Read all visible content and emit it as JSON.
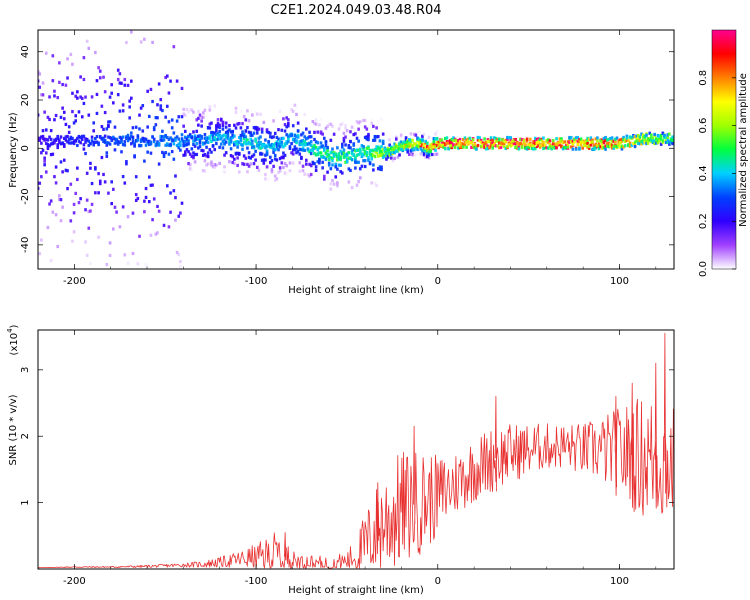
{
  "title": "C2E1.2024.049.03.48.R04",
  "chart_data": [
    {
      "type": "heatmap",
      "xlabel": "Height of straight line (km)",
      "ylabel": "Frequency (Hz)",
      "xlim": [
        -220,
        130
      ],
      "ylim": [
        -50,
        49
      ],
      "xticks": [
        -200,
        -100,
        0,
        100
      ],
      "yticks": [
        -40,
        -20,
        0,
        20,
        40
      ],
      "colorbar": {
        "label": "Normalized spectral amplitude",
        "range": [
          0,
          1
        ],
        "ticks": [
          "0.0",
          "0.2",
          "0.4",
          "0.6",
          "0.8"
        ],
        "tick_values": [
          0.0,
          0.2,
          0.4,
          0.6,
          0.8
        ],
        "colormap": [
          "#ffffff",
          "#a040ff",
          "#3000ff",
          "#0040ff",
          "#00d0ff",
          "#00ff40",
          "#a0ff00",
          "#ffff00",
          "#ff8000",
          "#ff0000",
          "#ff0090"
        ]
      },
      "ridge": {
        "x": [
          -220,
          -180,
          -140,
          -120,
          -100,
          -90,
          -80,
          -70,
          -60,
          -50,
          -40,
          -30,
          -20,
          -10,
          -5,
          0,
          20,
          50,
          80,
          100,
          115,
          130
        ],
        "center_hz": [
          3,
          3,
          3,
          4,
          2,
          0,
          5,
          0,
          -3,
          -4,
          -1,
          -2,
          1,
          2,
          0,
          2,
          2,
          2,
          2,
          2,
          4,
          4
        ],
        "amplitude": [
          0.2,
          0.3,
          0.35,
          0.4,
          0.45,
          0.4,
          0.4,
          0.45,
          0.5,
          0.5,
          0.5,
          0.6,
          0.7,
          0.8,
          0.9,
          0.95,
          0.95,
          0.95,
          0.9,
          0.85,
          0.65,
          0.55
        ]
      }
    },
    {
      "type": "line",
      "xlabel": "Height of straight line (km)",
      "ylabel": "SNR (10 * v/v)",
      "yscale_label": "(x10",
      "yscale_exp": "4",
      "yscale_close": ")",
      "xlim": [
        -220,
        130
      ],
      "ylim": [
        0,
        3.6
      ],
      "xticks": [
        -200,
        -100,
        0,
        100
      ],
      "yticks": [
        1,
        2,
        3
      ],
      "series": [
        {
          "color": "#e83030",
          "x": [
            -220,
            -200,
            -180,
            -160,
            -140,
            -130,
            -120,
            -110,
            -100,
            -95,
            -90,
            -85,
            -80,
            -70,
            -60,
            -50,
            -45,
            -40,
            -35,
            -30,
            -25,
            -20,
            -15,
            -10,
            -5,
            0,
            10,
            20,
            30,
            40,
            50,
            60,
            70,
            80,
            90,
            100,
            110,
            120,
            130
          ],
          "y": [
            0.02,
            0.03,
            0.03,
            0.04,
            0.06,
            0.07,
            0.1,
            0.14,
            0.18,
            0.2,
            0.22,
            0.2,
            0.12,
            0.1,
            0.08,
            0.12,
            0.2,
            0.35,
            0.55,
            0.7,
            0.8,
            0.9,
            0.95,
            1.0,
            1.05,
            1.1,
            1.3,
            1.5,
            1.65,
            1.75,
            1.8,
            1.85,
            1.85,
            1.8,
            1.8,
            1.75,
            1.7,
            1.65,
            1.6
          ],
          "envelope": [
            0.0,
            0.01,
            0.01,
            0.02,
            0.03,
            0.05,
            0.08,
            0.12,
            0.2,
            0.25,
            0.35,
            0.3,
            0.15,
            0.12,
            0.1,
            0.15,
            0.3,
            0.5,
            0.65,
            0.8,
            0.85,
            0.9,
            0.85,
            0.8,
            0.75,
            0.6,
            0.5,
            0.5,
            0.5,
            0.45,
            0.4,
            0.35,
            0.35,
            0.4,
            0.5,
            0.7,
            0.9,
            1.0,
            0.9
          ],
          "peaks": [
            {
              "x": 125,
              "y": 3.55
            },
            {
              "x": 120,
              "y": 3.1
            },
            {
              "x": 107,
              "y": 2.8
            },
            {
              "x": 98,
              "y": 2.6
            },
            {
              "x": 32,
              "y": 2.6
            },
            {
              "x": -13,
              "y": 2.15
            },
            {
              "x": -33,
              "y": 1.3
            },
            {
              "x": -84,
              "y": 0.55
            }
          ]
        }
      ]
    }
  ]
}
